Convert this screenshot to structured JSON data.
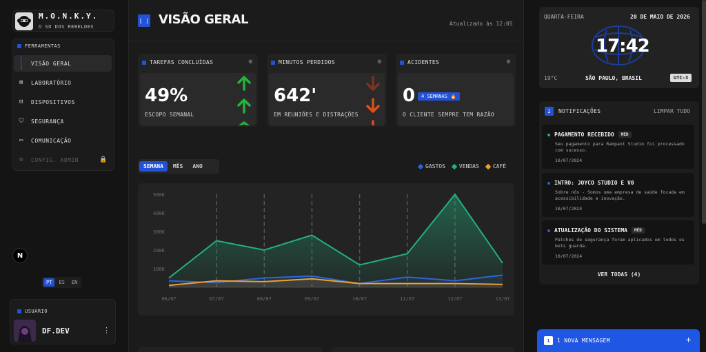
{
  "brand": {
    "name": "M.O.N.K.Y.",
    "subtitle": "O SO DOS REBELDES"
  },
  "sidebar": {
    "section_label": "FERRAMENTAS",
    "items": [
      {
        "label": "VISÃO GERAL",
        "icon": "bracket-icon",
        "active": true
      },
      {
        "label": "LABORATÓRIO",
        "icon": "lab-icon"
      },
      {
        "label": "DISPOSITIVOS",
        "icon": "device-icon"
      },
      {
        "label": "SEGURANÇA",
        "icon": "shield-icon"
      },
      {
        "label": "COMUNICAÇÃO",
        "icon": "chat-icon"
      },
      {
        "label": "CONFIG. ADMIN",
        "icon": "gear-icon",
        "disabled": true
      }
    ],
    "languages": [
      "PT",
      "ES",
      "EN"
    ],
    "language_selected": "PT",
    "user_label": "USUÁRIO",
    "user_name": "DF.DEV"
  },
  "header": {
    "title": "VISÃO GERAL",
    "updated": "Atualizado às 12:05"
  },
  "cards": [
    {
      "title": "TAREFAS CONCLUÍDAS",
      "value": "49%",
      "caption": "ESCOPO SEMANAL",
      "trend": "up"
    },
    {
      "title": "MINUTOS PERDIDOS",
      "value": "642'",
      "caption": "EM REUNIÕES E DISTRAÇÕES",
      "trend": "down"
    },
    {
      "title": "ACIDENTES",
      "value": "0",
      "badge": "4 SEMANAS 🔥",
      "caption": "O CLIENTE SEMPRE TEM RAZÃO"
    }
  ],
  "tabs": [
    "SEMANA",
    "MÊS",
    "ANO"
  ],
  "tab_selected": "SEMANA",
  "colors": {
    "accent": "#2352d6",
    "gastos": "#2f5fe0",
    "vendas": "#22b07d",
    "cafe": "#f0a030"
  },
  "chart_data": {
    "type": "area",
    "x": [
      "06/07",
      "07/07",
      "08/07",
      "09/07",
      "10/07",
      "11/07",
      "12/07",
      "13/07"
    ],
    "series": [
      {
        "name": "GASTOS",
        "values": [
          35000,
          25000,
          50000,
          60000,
          20000,
          55000,
          35000,
          65000
        ]
      },
      {
        "name": "VENDAS",
        "values": [
          50000,
          250000,
          200000,
          280000,
          120000,
          180000,
          500000,
          130000
        ]
      },
      {
        "name": "CAFÉ",
        "values": [
          10000,
          35000,
          30000,
          45000,
          20000,
          20000,
          20000,
          15000
        ]
      }
    ],
    "y_ticks": [
      "500K",
      "400K",
      "300K",
      "200K",
      "100K"
    ],
    "ylim": [
      0,
      500000
    ],
    "legend_position": "top-right",
    "grid": "vertical-dashed"
  },
  "clock": {
    "day": "QUARTA-FEIRA",
    "date": "20 DE MAIO DE 2026",
    "time": "17:42",
    "temp": "19°C",
    "city": "SÃO PAULO, BRASIL",
    "tz": "UTC-3"
  },
  "notifications": {
    "count": "2",
    "title": "NOTIFICAÇÕES",
    "clear": "LIMPAR TUDO",
    "items": [
      {
        "title": "PAGAMENTO RECEBIDO",
        "tag": "MÉD",
        "dot": "#22b07d",
        "body": "Seu pagamento para Rampant Studio foi processado com sucesso.",
        "date": "10/07/2024"
      },
      {
        "title": "INTRO: JOYCO STUDIO E V0",
        "tag": "",
        "dot": "#2f5fe0",
        "body": "Sobre nós - Somos uma empresa de saúde focada em acessibilidade e inovação.",
        "date": "10/07/2024"
      },
      {
        "title": "ATUALIZAÇÃO DO SISTEMA",
        "tag": "MÉD",
        "dot": "#2f5fe0",
        "body": "Patches de segurança foram aplicados em todos os bots guarda.",
        "date": "10/07/2024"
      }
    ],
    "see_all": "VER TODAS (4)"
  },
  "message_bar": {
    "count": "1",
    "text": "1 NOVA MENSAGEM"
  }
}
